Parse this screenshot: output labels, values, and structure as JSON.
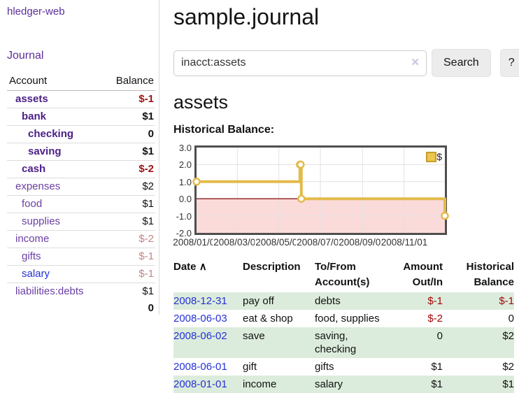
{
  "app": {
    "title": "hledger-web",
    "nav_journal": "Journal"
  },
  "sidebar": {
    "header": {
      "account": "Account",
      "balance": "Balance"
    },
    "accounts": [
      {
        "name": "assets",
        "balance": "$-1",
        "depth": 1,
        "bold": true,
        "neg": "neg-strong"
      },
      {
        "name": "bank",
        "balance": "$1",
        "depth": 2,
        "bold": true
      },
      {
        "name": "checking",
        "balance": "0",
        "depth": 3,
        "bold": true
      },
      {
        "name": "saving",
        "balance": "$1",
        "depth": 3,
        "bold": true
      },
      {
        "name": "cash",
        "balance": "$-2",
        "depth": 2,
        "bold": true,
        "neg": "neg-strong"
      },
      {
        "name": "expenses",
        "balance": "$2",
        "depth": 1
      },
      {
        "name": "food",
        "balance": "$1",
        "depth": 2
      },
      {
        "name": "supplies",
        "balance": "$1",
        "depth": 2
      },
      {
        "name": "income",
        "balance": "$-2",
        "depth": 1,
        "neg": "neg-dim"
      },
      {
        "name": "gifts",
        "balance": "$-1",
        "depth": 2,
        "neg": "neg-dim"
      },
      {
        "name": "salary",
        "balance": "$-1",
        "depth": 2,
        "neg": "neg-dim",
        "blue": true
      },
      {
        "name": "liabilities:debts",
        "balance": "$1",
        "depth": 1
      }
    ],
    "total": "0"
  },
  "main": {
    "journal_title": "sample.journal",
    "search": {
      "value": "inacct:assets",
      "clear_icon": "✕",
      "button_label": "Search",
      "help_label": "?"
    },
    "account_heading": "assets",
    "chart_label": "Historical Balance:"
  },
  "chart_data": {
    "type": "line",
    "subtype": "step-after",
    "title": "Historical Balance:",
    "series": [
      {
        "name": "$",
        "points": [
          [
            "2008-01-01",
            1
          ],
          [
            "2008-06-01",
            2
          ],
          [
            "2008-06-02",
            2
          ],
          [
            "2008-06-03",
            0
          ],
          [
            "2008-12-31",
            -1
          ]
        ]
      }
    ],
    "x_range": [
      "2008-01-01",
      "2008-12-31"
    ],
    "x_ticks": [
      "2008/01/01",
      "2008/03/01",
      "2008/05/01",
      "2008/07/01",
      "2008/09/01",
      "2008/11/01"
    ],
    "y_ticks": [
      3.0,
      2.0,
      1.0,
      0.0,
      -1.0,
      -2.0
    ],
    "ylim": [
      -2,
      3
    ],
    "grid": true,
    "legend": {
      "label": "$",
      "position": "top-right"
    },
    "colors": {
      "line": "#e3ba4b",
      "marker_fill": "#ffffff",
      "negative_fill": "#fbdada",
      "zero_line": "#8b1a1a",
      "grid": "#e2e2e2",
      "border": "#4f4f4f"
    }
  },
  "register": {
    "headers": {
      "date": "Date",
      "sort_icon": "∧",
      "description": "Description",
      "accounts": [
        "To/From",
        "Account(s)"
      ],
      "amount": [
        "Amount",
        "Out/In"
      ],
      "balance": [
        "Historical",
        "Balance"
      ]
    },
    "rows": [
      {
        "date": "2008-12-31",
        "description": "pay off",
        "accounts": "debts",
        "amount": "$-1",
        "amount_negative": true,
        "balance": "$-1",
        "balance_negative": true
      },
      {
        "date": "2008-06-03",
        "description": "eat & shop",
        "accounts": "food, supplies",
        "amount": "$-2",
        "amount_negative": true,
        "balance": "0"
      },
      {
        "date": "2008-06-02",
        "description": "save",
        "accounts": "saving, checking",
        "amount": "0",
        "balance": "$2"
      },
      {
        "date": "2008-06-01",
        "description": "gift",
        "accounts": "gifts",
        "amount": "$1",
        "balance": "$2"
      },
      {
        "date": "2008-01-01",
        "description": "income",
        "accounts": "salary",
        "amount": "$1",
        "balance": "$1"
      }
    ]
  }
}
